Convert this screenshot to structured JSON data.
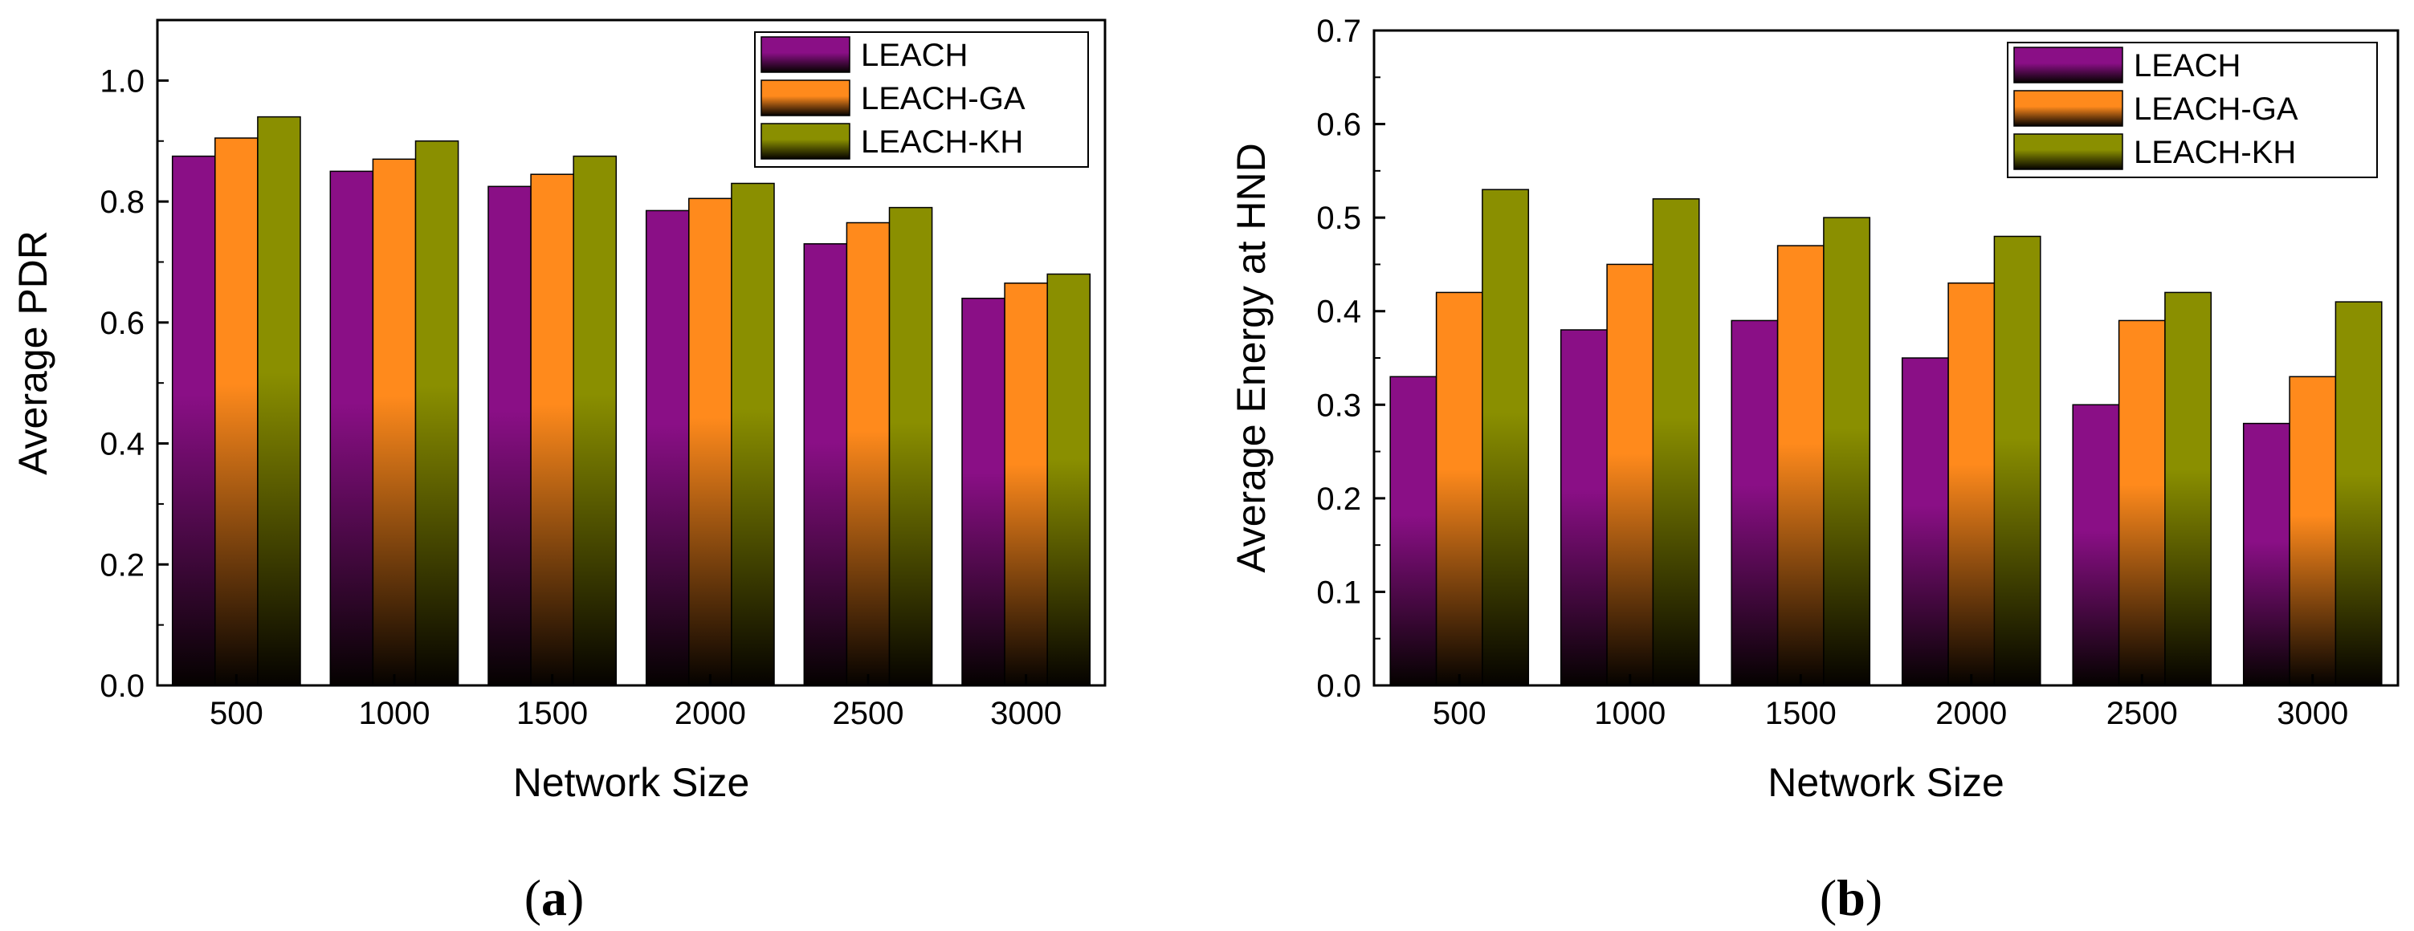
{
  "colors": {
    "LEACH": "#8a0f86",
    "LEACH-GA": "#ff8a1c",
    "LEACH-KH": "#8a8f00",
    "dark": "#050200"
  },
  "chart_data": [
    {
      "type": "bar",
      "panel_label": {
        "open": "(",
        "letter": "a",
        "close": ")"
      },
      "xlabel": "Network Size",
      "ylabel": "Average PDR",
      "categories": [
        "500",
        "1000",
        "1500",
        "2000",
        "2500",
        "3000"
      ],
      "ylim": [
        0.0,
        1.1
      ],
      "yticks": [
        0.0,
        0.2,
        0.4,
        0.6,
        0.8,
        1.0
      ],
      "ytick_labels": [
        "0.0",
        "0.2",
        "0.4",
        "0.6",
        "0.8",
        "1.0"
      ],
      "legend_position": "top-right",
      "series": [
        {
          "name": "LEACH",
          "values": [
            0.875,
            0.85,
            0.825,
            0.785,
            0.73,
            0.64
          ]
        },
        {
          "name": "LEACH-GA",
          "values": [
            0.905,
            0.87,
            0.845,
            0.805,
            0.765,
            0.665
          ]
        },
        {
          "name": "LEACH-KH",
          "values": [
            0.94,
            0.9,
            0.875,
            0.83,
            0.79,
            0.68
          ]
        }
      ]
    },
    {
      "type": "bar",
      "panel_label": {
        "open": "(",
        "letter": "b",
        "close": ")"
      },
      "xlabel": "Network Size",
      "ylabel": "Average Energy at HND",
      "categories": [
        "500",
        "1000",
        "1500",
        "2000",
        "2500",
        "3000"
      ],
      "ylim": [
        0.0,
        0.7
      ],
      "yticks": [
        0.0,
        0.1,
        0.2,
        0.3,
        0.4,
        0.5,
        0.6,
        0.7
      ],
      "ytick_labels": [
        "0.0",
        "0.1",
        "0.2",
        "0.3",
        "0.4",
        "0.5",
        "0.6",
        "0.7"
      ],
      "legend_position": "top-right",
      "series": [
        {
          "name": "LEACH",
          "values": [
            0.33,
            0.38,
            0.39,
            0.35,
            0.3,
            0.28
          ]
        },
        {
          "name": "LEACH-GA",
          "values": [
            0.42,
            0.45,
            0.47,
            0.43,
            0.39,
            0.33
          ]
        },
        {
          "name": "LEACH-KH",
          "values": [
            0.53,
            0.52,
            0.5,
            0.48,
            0.42,
            0.41
          ]
        }
      ]
    }
  ]
}
